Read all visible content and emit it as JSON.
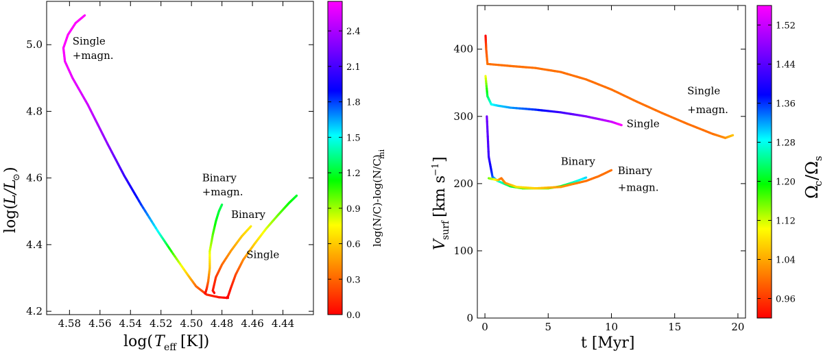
{
  "chart_data": [
    {
      "type": "line",
      "title": "",
      "xlabel": "log(T_eff [K])",
      "ylabel": "log(L/L_⊙)",
      "xlim": [
        4.595,
        4.42
      ],
      "ylim": [
        4.19,
        5.13
      ],
      "x_ticks": [
        4.58,
        4.56,
        4.54,
        4.52,
        4.5,
        4.48,
        4.46,
        4.44
      ],
      "y_ticks": [
        4.2,
        4.4,
        4.6,
        4.8,
        5.0
      ],
      "x_tick_labels": [
        "4.58",
        "4.56",
        "4.54",
        "4.52",
        "4.50",
        "4.48",
        "4.46",
        "4.44"
      ],
      "y_tick_labels": [
        "4.2",
        "4.4",
        "4.6",
        "4.8",
        "5.0"
      ],
      "colorbar": {
        "label": "log(N/C)-log(N/C)_ini",
        "range": [
          0.0,
          2.65
        ],
        "ticks": [
          0.0,
          0.3,
          0.6,
          0.9,
          1.2,
          1.5,
          1.8,
          2.1,
          2.4
        ],
        "tick_labels": [
          "0.0",
          "0.3",
          "0.6",
          "0.9",
          "1.2",
          "1.5",
          "1.8",
          "2.1",
          "2.4"
        ]
      },
      "series": [
        {
          "name": "Single +magn.",
          "points": [
            [
              4.476,
              4.24
            ],
            [
              4.482,
              4.242
            ],
            [
              4.49,
              4.25
            ],
            [
              4.497,
              4.275
            ],
            [
              4.503,
              4.313
            ],
            [
              4.512,
              4.372
            ],
            [
              4.522,
              4.44
            ],
            [
              4.533,
              4.52
            ],
            [
              4.544,
              4.606
            ],
            [
              4.555,
              4.702
            ],
            [
              4.568,
              4.82
            ],
            [
              4.578,
              4.9
            ],
            [
              4.583,
              4.95
            ],
            [
              4.584,
              4.99
            ],
            [
              4.581,
              5.03
            ],
            [
              4.576,
              5.065
            ],
            [
              4.57,
              5.088
            ]
          ],
          "color_values": [
            0.0,
            0.05,
            0.12,
            0.3,
            0.6,
            1.0,
            1.5,
            1.8,
            2.05,
            2.3,
            2.5,
            2.58,
            2.62,
            2.64,
            2.65,
            2.65,
            2.65
          ]
        },
        {
          "name": "Single",
          "points": [
            [
              4.477,
              4.24
            ],
            [
              4.476,
              4.245
            ],
            [
              4.474,
              4.272
            ],
            [
              4.471,
              4.31
            ],
            [
              4.466,
              4.355
            ],
            [
              4.459,
              4.4
            ],
            [
              4.451,
              4.448
            ],
            [
              4.443,
              4.49
            ],
            [
              4.436,
              4.525
            ],
            [
              4.431,
              4.547
            ]
          ],
          "color_values": [
            0.0,
            0.02,
            0.08,
            0.2,
            0.4,
            0.6,
            0.8,
            0.98,
            1.12,
            1.2
          ]
        },
        {
          "name": "Binary",
          "points": [
            [
              4.485,
              4.255
            ],
            [
              4.486,
              4.262
            ],
            [
              4.484,
              4.302
            ],
            [
              4.48,
              4.34
            ],
            [
              4.474,
              4.382
            ],
            [
              4.467,
              4.425
            ],
            [
              4.461,
              4.455
            ]
          ],
          "color_values": [
            0.0,
            0.05,
            0.15,
            0.3,
            0.45,
            0.6,
            0.7
          ]
        },
        {
          "name": "Binary +magn.",
          "points": [
            [
              4.491,
              4.253
            ],
            [
              4.49,
              4.268
            ],
            [
              4.489,
              4.29
            ],
            [
              4.488,
              4.33
            ],
            [
              4.488,
              4.38
            ],
            [
              4.486,
              4.43
            ],
            [
              4.484,
              4.47
            ],
            [
              4.482,
              4.5
            ],
            [
              4.48,
              4.52
            ]
          ],
          "color_values": [
            0.0,
            0.1,
            0.3,
            0.55,
            0.8,
            1.0,
            1.15,
            1.22,
            1.25
          ]
        }
      ],
      "annotations": [
        {
          "text": "Single",
          "x": 4.578,
          "y": 5.0
        },
        {
          "text": "+magn.",
          "x": 4.578,
          "y": 4.957
        },
        {
          "text": "Binary",
          "x": 4.493,
          "y": 4.59
        },
        {
          "text": "+magn.",
          "x": 4.493,
          "y": 4.548
        },
        {
          "text": "Binary",
          "x": 4.474,
          "y": 4.48
        },
        {
          "text": "Single",
          "x": 4.464,
          "y": 4.36
        }
      ]
    },
    {
      "type": "line",
      "title": "",
      "xlabel": "t [Myr]",
      "ylabel": "V_surf [km s⁻¹]",
      "xlim": [
        -0.6,
        20.6
      ],
      "ylim": [
        0,
        465
      ],
      "x_ticks": [
        0,
        5,
        10,
        15,
        20
      ],
      "y_ticks": [
        0,
        100,
        200,
        300,
        400
      ],
      "x_tick_labels": [
        "0",
        "5",
        "10",
        "15",
        "20"
      ],
      "y_tick_labels": [
        "0",
        "100",
        "200",
        "300",
        "400"
      ],
      "colorbar": {
        "label": "Ωc/Ωs",
        "range": [
          0.92,
          1.56
        ],
        "ticks": [
          0.96,
          1.04,
          1.12,
          1.2,
          1.28,
          1.36,
          1.44,
          1.52
        ],
        "tick_labels": [
          "0.96",
          "1.04",
          "1.12",
          "1.20",
          "1.28",
          "1.36",
          "1.44",
          "1.52"
        ]
      },
      "series": [
        {
          "name": "Single +magn.",
          "points": [
            [
              0.05,
              420
            ],
            [
              0.1,
              400
            ],
            [
              0.2,
              378
            ],
            [
              2,
              375
            ],
            [
              4,
              372
            ],
            [
              6,
              366
            ],
            [
              8,
              355
            ],
            [
              10,
              340
            ],
            [
              12,
              322
            ],
            [
              14,
              305
            ],
            [
              16,
              289
            ],
            [
              18,
              274
            ],
            [
              19,
              268
            ],
            [
              19.6,
              272
            ]
          ],
          "color_values": [
            0.92,
            0.98,
            1.0,
            1.0,
            1.0,
            1.0,
            1.0,
            1.0,
            1.0,
            1.0,
            1.0,
            1.0,
            1.02,
            1.06
          ]
        },
        {
          "name": "Single",
          "points": [
            [
              0.05,
              360
            ],
            [
              0.2,
              330
            ],
            [
              0.5,
              318
            ],
            [
              1,
              316
            ],
            [
              2,
              313
            ],
            [
              4,
              310
            ],
            [
              6,
              306
            ],
            [
              8,
              300
            ],
            [
              10,
              292
            ],
            [
              10.8,
              287
            ]
          ],
          "color_values": [
            1.1,
            1.22,
            1.28,
            1.3,
            1.32,
            1.36,
            1.42,
            1.47,
            1.52,
            1.56
          ]
        },
        {
          "name": "Binary",
          "points": [
            [
              0.15,
              300
            ],
            [
              0.3,
              240
            ],
            [
              0.6,
              210
            ],
            [
              1,
              204
            ],
            [
              2,
              196
            ],
            [
              3,
              193
            ],
            [
              4,
              193
            ],
            [
              5,
              193
            ],
            [
              6,
              196
            ],
            [
              7,
              202
            ],
            [
              8,
              209
            ]
          ],
          "color_values": [
            1.46,
            1.42,
            1.35,
            1.28,
            1.22,
            1.17,
            1.14,
            1.15,
            1.2,
            1.26,
            1.3
          ]
        },
        {
          "name": "Binary +magn.",
          "points": [
            [
              0.3,
              208
            ],
            [
              1,
              205
            ],
            [
              1.3,
              208
            ],
            [
              1.6,
              201
            ],
            [
              2.5,
              195
            ],
            [
              4,
              193
            ],
            [
              6,
              195
            ],
            [
              8,
              204
            ],
            [
              9,
              211
            ],
            [
              10,
              220
            ]
          ],
          "color_values": [
            1.16,
            1.08,
            1.0,
            1.02,
            1.08,
            1.07,
            1.03,
            1.0,
            1.0,
            1.0
          ]
        }
      ],
      "annotations": [
        {
          "text": "Single",
          "x": 16.0,
          "y": 333
        },
        {
          "text": "+magn.",
          "x": 16.0,
          "y": 305
        },
        {
          "text": "Single",
          "x": 11.2,
          "y": 284
        },
        {
          "text": "Binary",
          "x": 6.0,
          "y": 228
        },
        {
          "text": "Binary",
          "x": 10.5,
          "y": 214
        },
        {
          "text": "+magn.",
          "x": 10.5,
          "y": 189
        }
      ]
    }
  ],
  "rainbow_stops": [
    "#ff0000",
    "#ff8000",
    "#ffff00",
    "#00ff00",
    "#00ffff",
    "#0000ff",
    "#8000ff",
    "#ff00ff"
  ]
}
